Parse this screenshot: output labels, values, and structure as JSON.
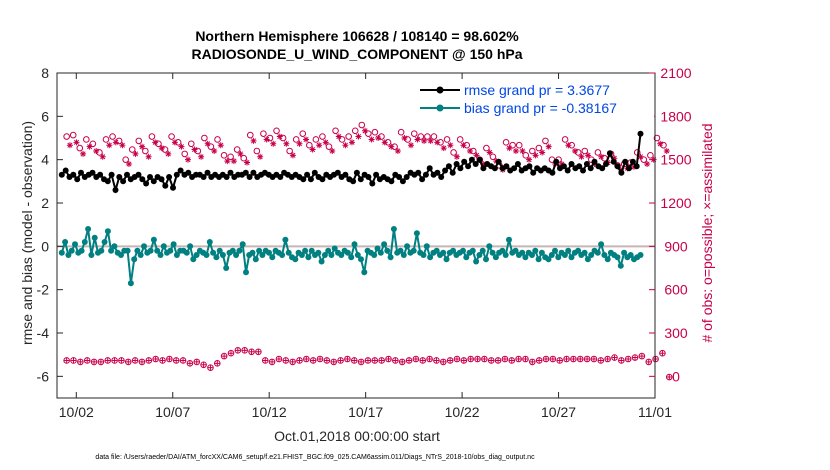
{
  "chart_data": {
    "type": "line",
    "title_line1": "Northern Hemisphere 106628 / 108140 = 98.602%",
    "title_line2": "RADIOSONDE_U_WIND_COMPONENT @ 150 hPa",
    "xlabel": "Oct.01,2018 00:00:00 start",
    "ylabel_left": "rmse and bias (model - observation)",
    "ylabel_right": "# of obs: o=possible; ×=assimilated",
    "footnote": "data file: /Users/raeder/DAI/ATM_forcXX/CAM6_setup/f.e21.FHIST_BGC.f09_025.CAM6assim.011/Diags_NTrS_2018-10/obs_diag_output.nc",
    "xlim": [
      0.5,
      31.5
    ],
    "ylim_left": [
      -7,
      8
    ],
    "ylim_right": [
      -150,
      2100
    ],
    "x_ticks": [
      {
        "value": 1.5,
        "label": "10/02"
      },
      {
        "value": 6.5,
        "label": "10/07"
      },
      {
        "value": 11.5,
        "label": "10/12"
      },
      {
        "value": 16.5,
        "label": "10/17"
      },
      {
        "value": 21.5,
        "label": "10/22"
      },
      {
        "value": 26.5,
        "label": "10/27"
      },
      {
        "value": 31.5,
        "label": "11/01"
      }
    ],
    "y_ticks_left": [
      {
        "value": -6,
        "label": "-6"
      },
      {
        "value": -4,
        "label": "-4"
      },
      {
        "value": -2,
        "label": "-2"
      },
      {
        "value": 0,
        "label": "0"
      },
      {
        "value": 2,
        "label": "2"
      },
      {
        "value": 4,
        "label": "4"
      },
      {
        "value": 6,
        "label": "6"
      },
      {
        "value": 8,
        "label": "8"
      }
    ],
    "y_ticks_right": [
      {
        "value": 0,
        "label": "0"
      },
      {
        "value": 300,
        "label": "300"
      },
      {
        "value": 600,
        "label": "600"
      },
      {
        "value": 900,
        "label": "900"
      },
      {
        "value": 1200,
        "label": "1200"
      },
      {
        "value": 1500,
        "label": "1500"
      },
      {
        "value": 1800,
        "label": "1800"
      },
      {
        "value": 2100,
        "label": "2100"
      }
    ],
    "zero_line": 0,
    "series": [
      {
        "name": "rmse",
        "legend": "rmse grand pr = 3.3677",
        "color": "#000000",
        "values": [
          3.3,
          3.5,
          3.2,
          3.3,
          3.1,
          3.4,
          3.2,
          3.3,
          3.4,
          3.2,
          3.3,
          3.1,
          3.0,
          3.3,
          2.6,
          3.2,
          3.0,
          3.3,
          3.1,
          3.2,
          3.3,
          3.1,
          2.9,
          3.2,
          3.0,
          3.2,
          3.1,
          2.8,
          3.2,
          2.7,
          3.3,
          3.5,
          3.3,
          3.4,
          3.2,
          3.3,
          3.3,
          3.2,
          3.4,
          3.2,
          3.3,
          3.2,
          3.3,
          3.2,
          3.4,
          3.2,
          3.3,
          3.3,
          3.4,
          3.2,
          3.4,
          3.2,
          3.3,
          3.4,
          3.3,
          3.2,
          3.3,
          3.2,
          3.4,
          3.3,
          3.2,
          3.3,
          3.2,
          3.1,
          3.3,
          3.1,
          3.4,
          3.2,
          3.1,
          3.3,
          3.2,
          3.3,
          3.4,
          3.2,
          3.3,
          3.1,
          3.0,
          3.4,
          3.1,
          3.3,
          3.2,
          2.9,
          3.3,
          3.1,
          3.2,
          3.1,
          3.0,
          3.3,
          3.2,
          3.0,
          3.2,
          3.4,
          3.3,
          3.4,
          3.1,
          3.3,
          3.6,
          3.3,
          3.4,
          3.2,
          3.5,
          3.7,
          3.4,
          3.8,
          3.6,
          3.9,
          3.7,
          4.0,
          3.8,
          4.0,
          3.6,
          3.8,
          3.7,
          3.6,
          3.9,
          3.6,
          3.7,
          3.5,
          3.6,
          3.8,
          3.5,
          3.6,
          3.7,
          3.4,
          3.6,
          3.5,
          3.6,
          3.5,
          3.4,
          3.9,
          3.6,
          3.7,
          3.5,
          3.8,
          3.6,
          3.7,
          3.5,
          3.8,
          3.6,
          3.9,
          3.7,
          3.6,
          3.8,
          4.3,
          3.9,
          3.7,
          3.4,
          3.9,
          3.6,
          3.9,
          3.7,
          5.2
        ]
      },
      {
        "name": "bias",
        "legend": "bias grand pr = -0.38167",
        "color": "#008080",
        "values": [
          -0.3,
          0.2,
          -0.4,
          -0.2,
          0.1,
          -0.3,
          -0.2,
          0.2,
          0.8,
          -0.4,
          0.4,
          -0.3,
          -0.2,
          0.2,
          0.7,
          -0.2,
          0.0,
          -0.3,
          -0.4,
          -0.2,
          -0.2,
          -1.7,
          -0.6,
          -0.2,
          -0.4,
          0.0,
          -0.3,
          -0.2,
          0.3,
          -0.2,
          -0.4,
          0.0,
          -0.3,
          -0.2,
          0.1,
          -0.4,
          -0.2,
          -0.2,
          -0.3,
          0.0,
          -0.6,
          -0.4,
          -0.2,
          -0.3,
          -0.4,
          0.2,
          -0.3,
          -0.5,
          -0.2,
          -0.4,
          -1.0,
          -0.3,
          -0.2,
          -0.4,
          -0.2,
          0.1,
          -1.2,
          -0.4,
          -0.3,
          -0.6,
          -0.2,
          -0.4,
          -0.2,
          -0.3,
          -0.5,
          -0.2,
          -0.3,
          -0.4,
          0.3,
          -0.3,
          -0.5,
          -0.6,
          -0.3,
          -0.4,
          -0.2,
          -0.5,
          -0.2,
          -0.4,
          -0.3,
          -0.7,
          -0.4,
          -0.2,
          -0.4,
          -0.1,
          -0.3,
          -0.4,
          -0.2,
          -0.3,
          -0.5,
          0.1,
          -0.4,
          -0.6,
          -1.2,
          -0.2,
          -0.3,
          -0.4,
          -0.1,
          -0.3,
          0.1,
          -0.2,
          -0.5,
          0.8,
          -0.3,
          -0.2,
          -0.4,
          0.0,
          -0.3,
          -0.2,
          0.6,
          -0.3,
          -0.4,
          0.0,
          -0.5,
          -0.3,
          -0.2,
          -0.4,
          -0.3,
          -0.6,
          -0.3,
          -0.2,
          -0.4,
          -0.3,
          -0.2,
          -0.5,
          -0.3,
          -0.2,
          -0.7,
          -0.4,
          -0.2,
          -0.6,
          0.0,
          -0.3,
          -0.5,
          -0.3,
          -0.2,
          -0.4,
          0.3,
          -0.3,
          -0.2,
          -0.4,
          -0.3,
          -0.5,
          -0.3,
          -0.4,
          -0.2,
          -0.6,
          -0.3,
          -0.5,
          -0.6,
          -0.4,
          -0.2,
          -0.5,
          -0.3,
          -0.4,
          -0.2,
          -0.5,
          -0.3,
          -0.2,
          -0.4,
          -0.3,
          -0.6,
          -0.4,
          -0.2,
          -0.3,
          0.1,
          -0.4,
          -0.6,
          -0.3,
          -0.4,
          -0.5,
          -0.9,
          -0.3,
          -0.5,
          -0.4,
          -0.6,
          -0.5,
          -0.4
        ]
      }
    ],
    "obs_possible": [
      1660,
      1670,
      1580,
      1640,
      1610,
      1550,
      1640,
      1660,
      1630,
      1500,
      1570,
      1630,
      1560,
      1660,
      1610,
      1570,
      1660,
      1620,
      1540,
      1610,
      1560,
      1650,
      1590,
      1640,
      1530,
      1520,
      1570,
      1510,
      1670,
      1560,
      1680,
      1650,
      1700,
      1650,
      1560,
      1640,
      1680,
      1600,
      1640,
      1660,
      1590,
      1700,
      1640,
      1660,
      1700,
      1740,
      1680,
      1690,
      1660,
      1620,
      1590,
      1690,
      1640,
      1680,
      1660,
      1660,
      1660,
      1620,
      1640,
      1550,
      1640,
      1600,
      1560,
      1500,
      1580,
      1520,
      1460,
      1620,
      1600,
      1600,
      1530,
      1560,
      1580,
      1630,
      1500,
      1500,
      1640,
      1600,
      1550,
      1560,
      1500,
      1550,
      1510,
      1540,
      1460,
      1470,
      1480,
      1550,
      1500,
      1530,
      1650,
      1600
    ],
    "obs_possible_x_step": 0.34,
    "obs_assimilated": [
      1600,
      1620,
      1540,
      1590,
      1560,
      1520,
      1600,
      1620,
      1600,
      1470,
      1540,
      1590,
      1520,
      1620,
      1580,
      1540,
      1620,
      1590,
      1500,
      1570,
      1520,
      1610,
      1560,
      1600,
      1490,
      1490,
      1540,
      1480,
      1630,
      1520,
      1640,
      1610,
      1660,
      1610,
      1530,
      1610,
      1640,
      1570,
      1600,
      1620,
      1560,
      1660,
      1600,
      1620,
      1660,
      1700,
      1640,
      1650,
      1620,
      1590,
      1560,
      1650,
      1600,
      1640,
      1630,
      1630,
      1620,
      1580,
      1600,
      1520,
      1600,
      1560,
      1530,
      1470,
      1550,
      1490,
      1430,
      1580,
      1560,
      1560,
      1500,
      1530,
      1550,
      1590,
      1470,
      1470,
      1600,
      1560,
      1520,
      1530,
      1470,
      1520,
      1480,
      1510,
      1430,
      1440,
      1450,
      1520,
      1470,
      1500,
      1610,
      1560
    ],
    "obs_bottom_possible": [
      110,
      110,
      100,
      110,
      100,
      100,
      110,
      110,
      110,
      100,
      110,
      100,
      110,
      120,
      110,
      120,
      110,
      110,
      90,
      100,
      80,
      60,
      90,
      140,
      160,
      180,
      180,
      170,
      170,
      110,
      100,
      120,
      110,
      100,
      110,
      120,
      110,
      120,
      110,
      100,
      110,
      120,
      110,
      100,
      110,
      110,
      110,
      120,
      110,
      100,
      110,
      120,
      110,
      120,
      110,
      100,
      110,
      120,
      110,
      120,
      120,
      120,
      110,
      110,
      120,
      110,
      120,
      120,
      100,
      110,
      120,
      120,
      110,
      120,
      120,
      120,
      120,
      120,
      110,
      120,
      130,
      110,
      120,
      130,
      140,
      100,
      120,
      160,
      -5
    ],
    "obs_bottom_x_step": 0.355
  }
}
